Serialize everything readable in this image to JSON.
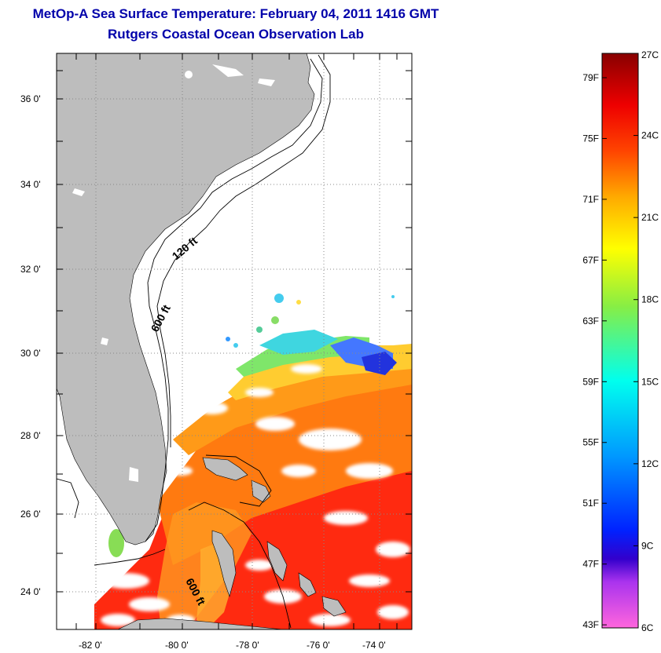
{
  "title": "MetOp-A Sea Surface Temperature:  February 04, 2011 1416 GMT",
  "subtitle": "Rutgers Coastal Ocean Observation Lab",
  "map": {
    "lat_ticks": [
      "36 0'",
      "34 0'",
      "32 0'",
      "30 0'",
      "28 0'",
      "26 0'",
      "24 0'"
    ],
    "lon_ticks": [
      "-82 0'",
      "-80 0'",
      "-78 0'",
      "-76 0'",
      "-74 0'"
    ],
    "contour_labels": [
      "120 ft",
      "600 ft",
      "600 ft"
    ],
    "colors": {
      "land": "#bdbdbd",
      "ocean": "#ffffff",
      "grid": "#888888"
    }
  },
  "colorbar": {
    "fahrenheit": [
      "79F",
      "75F",
      "71F",
      "67F",
      "63F",
      "59F",
      "55F",
      "51F",
      "47F",
      "43F"
    ],
    "celsius": [
      "27C",
      "24C",
      "21C",
      "18C",
      "15C",
      "12C",
      "9C",
      "6C"
    ]
  }
}
